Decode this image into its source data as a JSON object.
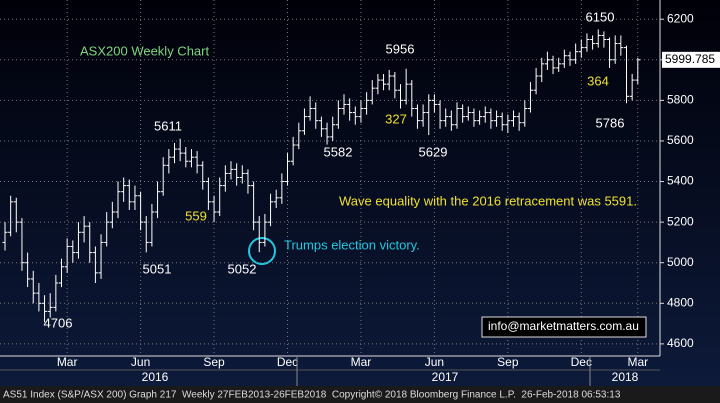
{
  "chart_data": {
    "type": "ohlc",
    "title": "ASX200 Weekly Chart",
    "color": "#ffffff",
    "grid": true,
    "categories": [
      null,
      null,
      null,
      null,
      null,
      null,
      null,
      null,
      null,
      null,
      null,
      "Mar",
      null,
      null,
      null,
      null,
      null,
      null,
      null,
      null,
      null,
      null,
      null,
      null,
      "Jun",
      null,
      null,
      null,
      null,
      null,
      null,
      null,
      null,
      null,
      null,
      null,
      null,
      "Sep",
      null,
      null,
      null,
      null,
      null,
      null,
      null,
      null,
      null,
      null,
      null,
      null,
      "Dec",
      null,
      null,
      null,
      null,
      null,
      null,
      null,
      null,
      null,
      null,
      null,
      null,
      "Mar",
      null,
      null,
      null,
      null,
      null,
      null,
      null,
      null,
      null,
      null,
      null,
      null,
      "Jun",
      null,
      null,
      null,
      null,
      null,
      null,
      null,
      null,
      null,
      null,
      null,
      null,
      "Sep",
      null,
      null,
      null,
      null,
      null,
      null,
      null,
      null,
      null,
      null,
      null,
      null,
      "Dec",
      null,
      null,
      null,
      null,
      null,
      null,
      null,
      null,
      null,
      "Mar"
    ],
    "open": [
      5100,
      5150,
      5300,
      5200,
      5000,
      4920,
      4850,
      4800,
      4760,
      4780,
      4900,
      4980,
      5080,
      5050,
      5150,
      5180,
      5050,
      4950,
      5100,
      5200,
      5250,
      5350,
      5380,
      5300,
      5330,
      5200,
      5100,
      5250,
      5350,
      5480,
      5520,
      5560,
      5540,
      5500,
      5520,
      5480,
      5400,
      5300,
      5250,
      5380,
      5440,
      5460,
      5420,
      5440,
      5380,
      5200,
      5100,
      5200,
      5300,
      5320,
      5400,
      5500,
      5580,
      5650,
      5720,
      5760,
      5700,
      5660,
      5620,
      5680,
      5760,
      5780,
      5740,
      5720,
      5760,
      5800,
      5860,
      5900,
      5880,
      5920,
      5850,
      5800,
      5880,
      5760,
      5700,
      5740,
      5800,
      5780,
      5700,
      5720,
      5680,
      5760,
      5720,
      5740,
      5700,
      5720,
      5740,
      5700,
      5720,
      5680,
      5700,
      5720,
      5690,
      5760,
      5850,
      5920,
      5980,
      6000,
      5960,
      5980,
      6020,
      6000,
      6040,
      6060,
      6100,
      6080,
      6120,
      6100,
      6000,
      6080,
      6060,
      5820,
      5900
    ],
    "high": [
      5200,
      5330,
      5320,
      5220,
      5050,
      4960,
      4900,
      4840,
      4850,
      4940,
      5020,
      5120,
      5110,
      5200,
      5230,
      5200,
      5080,
      5140,
      5250,
      5300,
      5400,
      5420,
      5410,
      5380,
      5350,
      5230,
      5290,
      5400,
      5520,
      5560,
      5590,
      5611,
      5570,
      5560,
      5550,
      5500,
      5420,
      5330,
      5420,
      5480,
      5500,
      5490,
      5480,
      5460,
      5400,
      5230,
      5240,
      5340,
      5360,
      5440,
      5540,
      5620,
      5690,
      5760,
      5820,
      5790,
      5720,
      5690,
      5720,
      5800,
      5830,
      5810,
      5770,
      5800,
      5840,
      5900,
      5930,
      5930,
      5950,
      5940,
      5880,
      5956,
      5900,
      5780,
      5780,
      5830,
      5830,
      5800,
      5760,
      5750,
      5790,
      5780,
      5770,
      5760,
      5750,
      5770,
      5760,
      5750,
      5740,
      5730,
      5750,
      5740,
      5800,
      5890,
      5960,
      6010,
      6040,
      6020,
      6010,
      6050,
      6040,
      6080,
      6100,
      6130,
      6120,
      6150,
      6140,
      6110,
      6120,
      6120,
      6070,
      5930,
      6010
    ],
    "low": [
      5060,
      5130,
      5150,
      4960,
      4880,
      4800,
      4760,
      4706,
      4730,
      4760,
      4880,
      4950,
      5000,
      5020,
      5100,
      5000,
      4900,
      4920,
      5080,
      5170,
      5220,
      5300,
      5260,
      5260,
      5160,
      5051,
      5080,
      5220,
      5330,
      5440,
      5490,
      5500,
      5470,
      5470,
      5440,
      5360,
      5260,
      5200,
      5230,
      5350,
      5410,
      5380,
      5390,
      5340,
      5160,
      5052,
      5080,
      5180,
      5270,
      5290,
      5380,
      5480,
      5560,
      5630,
      5700,
      5660,
      5620,
      5582,
      5600,
      5660,
      5730,
      5700,
      5680,
      5690,
      5730,
      5780,
      5830,
      5850,
      5850,
      5810,
      5760,
      5780,
      5720,
      5660,
      5670,
      5629,
      5740,
      5660,
      5670,
      5650,
      5660,
      5690,
      5700,
      5670,
      5680,
      5690,
      5660,
      5670,
      5650,
      5640,
      5670,
      5650,
      5670,
      5740,
      5830,
      5890,
      5950,
      5930,
      5940,
      5960,
      5970,
      5980,
      6010,
      6040,
      6050,
      6060,
      6060,
      5960,
      5980,
      6020,
      5786,
      5800,
      5880
    ],
    "close": [
      5150,
      5300,
      5200,
      5000,
      4920,
      4850,
      4800,
      4760,
      4780,
      4900,
      4980,
      5080,
      5050,
      5150,
      5180,
      5050,
      4950,
      5100,
      5200,
      5250,
      5350,
      5380,
      5300,
      5330,
      5200,
      5100,
      5250,
      5350,
      5480,
      5520,
      5560,
      5540,
      5500,
      5520,
      5480,
      5400,
      5300,
      5250,
      5380,
      5440,
      5460,
      5420,
      5440,
      5380,
      5200,
      5100,
      5200,
      5300,
      5320,
      5400,
      5500,
      5580,
      5650,
      5720,
      5760,
      5700,
      5660,
      5620,
      5680,
      5760,
      5780,
      5740,
      5720,
      5760,
      5800,
      5860,
      5900,
      5880,
      5920,
      5850,
      5800,
      5880,
      5760,
      5700,
      5740,
      5800,
      5780,
      5700,
      5720,
      5680,
      5760,
      5720,
      5740,
      5700,
      5720,
      5740,
      5700,
      5720,
      5680,
      5700,
      5720,
      5690,
      5760,
      5850,
      5920,
      5980,
      6000,
      5960,
      5980,
      6020,
      6000,
      6040,
      6060,
      6100,
      6080,
      6120,
      6100,
      6000,
      6080,
      6060,
      5820,
      5900,
      6000
    ],
    "ylim": [
      4560,
      6270
    ],
    "yticks": [
      4600,
      4800,
      5000,
      5200,
      5400,
      5600,
      5800,
      6000,
      6200
    ],
    "last_value": 5999.785,
    "years": [
      "2016",
      "2017",
      "2018"
    ],
    "annotations": [
      {
        "text": 6150
      },
      {
        "text": 5956
      },
      {
        "text": 5611
      },
      {
        "text": 5582
      },
      {
        "text": 5629
      },
      {
        "text": 5052
      },
      {
        "text": 5051
      },
      {
        "text": 4706
      },
      {
        "text": 5786
      },
      {
        "text": 559
      },
      {
        "text": 327
      },
      {
        "text": 364
      },
      {
        "text": "Wave equality with the 2016 retracement was 5591."
      },
      {
        "text": "Trumps election victory."
      },
      {
        "text": "info@marketmatters.com.au"
      }
    ],
    "footer": "AS51 Index (S&P/ASX 200) Graph 217  Weekly 27FEB2013-26FEB2018  Copyright© 2018 Bloomberg Finance L.P.  26-Feb-2018 06:53:13"
  }
}
